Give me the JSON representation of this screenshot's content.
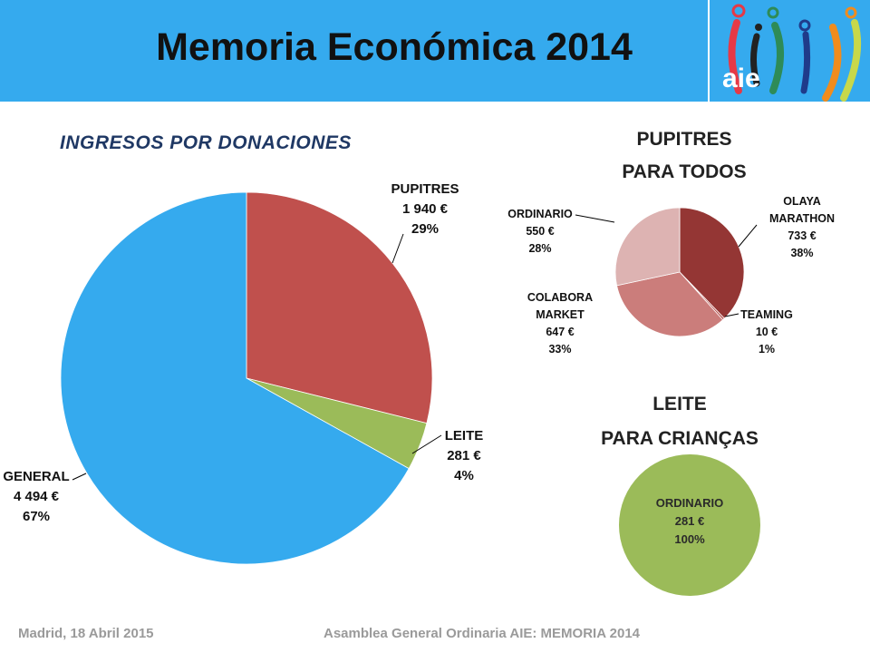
{
  "header": {
    "title": "Memoria Económica 2014",
    "logo_text": "aie"
  },
  "colors": {
    "header_bg": "#35aaee",
    "pupitres": "#c0504d",
    "leite": "#9bbb59",
    "general": "#35aaee",
    "olaya": "#943634",
    "teaming": "#b85450",
    "colabora": "#cb7d7b",
    "ordinario_pupitres": "#ddb3b2",
    "ordinario_leite": "#9bbb59"
  },
  "chart_data": [
    {
      "type": "pie",
      "title": "INGRESOS POR DONACIONES",
      "slices": [
        {
          "label": "PUPITRES",
          "value": 1940,
          "value_text": "1 940 €",
          "percent": "29%"
        },
        {
          "label": "LEITE",
          "value": 281,
          "value_text": "281 €",
          "percent": "4%"
        },
        {
          "label": "GENERAL",
          "value": 4494,
          "value_text": "4 494 €",
          "percent": "67%"
        }
      ]
    },
    {
      "type": "pie",
      "title_lines": [
        "PUPITRES",
        "PARA TODOS"
      ],
      "slices": [
        {
          "label_lines": [
            "OLAYA",
            "MARATHON"
          ],
          "value": 733,
          "value_text": "733 €",
          "percent": "38%"
        },
        {
          "label_lines": [
            "TEAMING"
          ],
          "value": 10,
          "value_text": "10 €",
          "percent": "1%"
        },
        {
          "label_lines": [
            "COLABORA",
            "MARKET"
          ],
          "value": 647,
          "value_text": "647 €",
          "percent": "33%"
        },
        {
          "label_lines": [
            "ORDINARIO"
          ],
          "value": 550,
          "value_text": "550 €",
          "percent": "28%"
        }
      ]
    },
    {
      "type": "pie",
      "title_lines": [
        "LEITE",
        "PARA CRIANÇAS"
      ],
      "slices": [
        {
          "label_lines": [
            "ORDINARIO"
          ],
          "value": 281,
          "value_text": "281 €",
          "percent": "100%"
        }
      ]
    }
  ],
  "footer": {
    "left": "Madrid, 18 Abril 2015",
    "center": "Asamblea General Ordinaria AIE:  MEMORIA 2014"
  }
}
